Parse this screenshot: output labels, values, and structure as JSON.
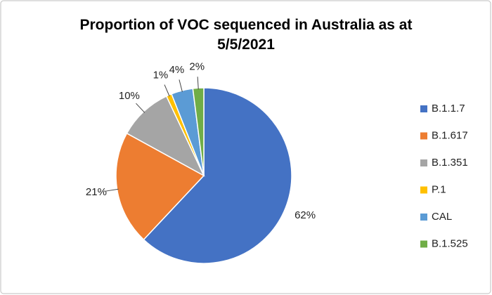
{
  "chart_data": {
    "type": "pie",
    "title": "Proportion of VOC sequenced in Australia as at 5/5/2021",
    "categories": [
      "B.1.1.7",
      "B.1.617",
      "B.1.351",
      "P.1",
      "CAL",
      "B.1.525"
    ],
    "values": [
      62,
      21,
      10,
      1,
      4,
      2
    ],
    "value_labels": [
      "62%",
      "21%",
      "10%",
      "1%",
      "4%",
      "2%"
    ],
    "colors": [
      "#4472c4",
      "#ed7d31",
      "#a5a5a5",
      "#ffc000",
      "#5b9bd5",
      "#70ad47"
    ],
    "legend": "right"
  }
}
